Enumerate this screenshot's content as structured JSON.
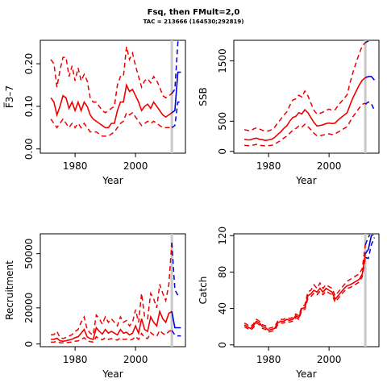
{
  "title": "Fsq, then FMult=2,0",
  "subtitle": "TAC = 213666 (164530;292819)",
  "colors": {
    "history": "#ee0000",
    "projection": "#0000dd",
    "marker": "#c8c8c8"
  },
  "chart_data": [
    {
      "type": "line",
      "xlabel": "Year",
      "ylabel": "F̅3–7",
      "xlim": [
        1968.5,
        2016.5
      ],
      "ylim": [
        -0.01,
        0.255
      ],
      "xticks": [
        1980,
        2000
      ],
      "yticks": [
        0.0,
        0.1,
        0.2
      ],
      "yticklabels": [
        "0.00",
        "0.10",
        "0.20"
      ],
      "marker_year": 2012,
      "history": {
        "x": [
          1972,
          1973,
          1974,
          1975,
          1976,
          1977,
          1978,
          1979,
          1980,
          1981,
          1982,
          1983,
          1984,
          1985,
          1986,
          1987,
          1988,
          1989,
          1990,
          1991,
          1992,
          1993,
          1994,
          1995,
          1996,
          1997,
          1998,
          1999,
          2000,
          2001,
          2002,
          2003,
          2004,
          2005,
          2006,
          2007,
          2008,
          2009,
          2010,
          2011,
          2012
        ],
        "median": [
          0.12,
          0.11,
          0.08,
          0.1,
          0.125,
          0.12,
          0.095,
          0.11,
          0.09,
          0.11,
          0.09,
          0.11,
          0.1,
          0.08,
          0.07,
          0.065,
          0.06,
          0.055,
          0.05,
          0.05,
          0.06,
          0.06,
          0.09,
          0.11,
          0.11,
          0.15,
          0.135,
          0.14,
          0.125,
          0.11,
          0.09,
          0.1,
          0.105,
          0.095,
          0.11,
          0.1,
          0.09,
          0.08,
          0.075,
          0.08,
          0.085
        ],
        "lower": [
          0.07,
          0.06,
          0.05,
          0.06,
          0.07,
          0.06,
          0.05,
          0.06,
          0.05,
          0.06,
          0.05,
          0.06,
          0.05,
          0.04,
          0.04,
          0.04,
          0.035,
          0.03,
          0.03,
          0.03,
          0.035,
          0.04,
          0.05,
          0.06,
          0.065,
          0.085,
          0.08,
          0.085,
          0.075,
          0.065,
          0.055,
          0.06,
          0.065,
          0.06,
          0.065,
          0.06,
          0.055,
          0.05,
          0.05,
          0.05,
          0.05
        ],
        "upper": [
          0.21,
          0.2,
          0.145,
          0.185,
          0.215,
          0.215,
          0.17,
          0.195,
          0.16,
          0.19,
          0.16,
          0.175,
          0.16,
          0.12,
          0.11,
          0.11,
          0.1,
          0.09,
          0.085,
          0.09,
          0.095,
          0.1,
          0.15,
          0.17,
          0.17,
          0.24,
          0.21,
          0.225,
          0.195,
          0.17,
          0.145,
          0.16,
          0.165,
          0.155,
          0.17,
          0.16,
          0.145,
          0.125,
          0.12,
          0.125,
          0.13
        ]
      },
      "projection": {
        "x": [
          2012,
          2013,
          2014,
          2015
        ],
        "median": [
          0.085,
          0.09,
          0.18,
          0.18
        ],
        "lower": [
          0.05,
          0.055,
          0.11,
          0.11
        ],
        "upper": [
          0.13,
          0.14,
          0.25,
          0.27
        ]
      }
    },
    {
      "type": "line",
      "xlabel": "Year",
      "ylabel": "SSB",
      "xlim": [
        1968.5,
        2016.5
      ],
      "ylim": [
        -30,
        1840
      ],
      "xticks": [
        1980,
        2000
      ],
      "yticks": [
        0,
        500,
        1500
      ],
      "yticklabels": [
        "0",
        "500",
        "1500"
      ],
      "marker_year": 2012,
      "history": {
        "x": [
          1972,
          1973,
          1974,
          1975,
          1976,
          1977,
          1978,
          1979,
          1980,
          1981,
          1982,
          1983,
          1984,
          1985,
          1986,
          1987,
          1988,
          1989,
          1990,
          1991,
          1992,
          1993,
          1994,
          1995,
          1996,
          1997,
          1998,
          1999,
          2000,
          2001,
          2002,
          2003,
          2004,
          2005,
          2006,
          2007,
          2008,
          2009,
          2010,
          2011,
          2012
        ],
        "median": [
          200,
          190,
          190,
          210,
          220,
          200,
          195,
          180,
          190,
          200,
          230,
          280,
          320,
          380,
          420,
          500,
          560,
          580,
          640,
          620,
          690,
          640,
          560,
          480,
          420,
          430,
          440,
          460,
          470,
          460,
          470,
          520,
          560,
          600,
          640,
          780,
          900,
          1000,
          1100,
          1180,
          1220
        ],
        "lower": [
          100,
          95,
          95,
          105,
          115,
          100,
          95,
          90,
          95,
          100,
          120,
          150,
          180,
          220,
          250,
          300,
          350,
          380,
          420,
          400,
          450,
          410,
          360,
          300,
          260,
          260,
          270,
          280,
          290,
          280,
          290,
          320,
          350,
          380,
          410,
          500,
          580,
          650,
          720,
          780,
          800
        ],
        "upper": [
          360,
          350,
          340,
          370,
          390,
          370,
          350,
          330,
          340,
          360,
          400,
          470,
          530,
          600,
          650,
          760,
          850,
          870,
          930,
          900,
          1000,
          920,
          800,
          680,
          620,
          630,
          650,
          680,
          700,
          680,
          690,
          760,
          820,
          880,
          940,
          1150,
          1320,
          1480,
          1620,
          1750,
          1800
        ]
      },
      "projection": {
        "x": [
          2012,
          2013,
          2014,
          2015
        ],
        "median": [
          1220,
          1240,
          1240,
          1180
        ],
        "lower": [
          780,
          820,
          790,
          680
        ],
        "upper": [
          1800,
          1830,
          1850,
          1850
        ]
      }
    },
    {
      "type": "line",
      "xlabel": "Year",
      "ylabel": "Recruitment",
      "xlim": [
        1968.5,
        2016.5
      ],
      "ylim": [
        -1500,
        61000
      ],
      "xticks": [
        1980,
        2000
      ],
      "yticks": [
        0,
        20000,
        50000
      ],
      "yticklabels": [
        "0",
        "20000",
        "50000"
      ],
      "marker_year": 2012,
      "history": {
        "x": [
          1972,
          1973,
          1974,
          1975,
          1976,
          1977,
          1978,
          1979,
          1980,
          1981,
          1982,
          1983,
          1984,
          1985,
          1986,
          1987,
          1988,
          1989,
          1990,
          1991,
          1992,
          1993,
          1994,
          1995,
          1996,
          1997,
          1998,
          1999,
          2000,
          2001,
          2002,
          2003,
          2004,
          2005,
          2006,
          2007,
          2008,
          2009,
          2010,
          2011,
          2012
        ],
        "median": [
          2500,
          2600,
          3200,
          1800,
          1500,
          1800,
          2200,
          2600,
          3500,
          4000,
          6000,
          8000,
          4000,
          3000,
          2500,
          9000,
          7000,
          5500,
          8000,
          6000,
          7000,
          6000,
          5000,
          8000,
          6000,
          6500,
          5000,
          6000,
          10000,
          6000,
          14000,
          8000,
          7000,
          15000,
          12000,
          10000,
          18000,
          14000,
          12000,
          17000,
          18000
        ],
        "lower": [
          1000,
          1100,
          1400,
          700,
          600,
          700,
          900,
          1100,
          1500,
          1700,
          2500,
          3500,
          1700,
          1300,
          1100,
          4000,
          3000,
          2300,
          3400,
          2500,
          3000,
          2500,
          2100,
          3400,
          2500,
          2700,
          2100,
          2500,
          4200,
          2500,
          5800,
          3400,
          3000,
          6300,
          5000,
          4200,
          7500,
          5800,
          5000,
          7000,
          7500
        ],
        "upper": [
          5000,
          5200,
          7000,
          3500,
          3000,
          3600,
          4400,
          5200,
          7000,
          8000,
          12000,
          15000,
          8000,
          6000,
          5000,
          16000,
          14000,
          11000,
          15000,
          12000,
          14000,
          12000,
          10000,
          15000,
          12000,
          13000,
          10000,
          12000,
          19000,
          12000,
          28000,
          15000,
          14000,
          28000,
          25000,
          20000,
          33000,
          28000,
          24000,
          33000,
          56000
        ]
      },
      "projection": {
        "x": [
          2012,
          2013,
          2014,
          2015
        ],
        "median": [
          18000,
          9000,
          9000,
          9000
        ],
        "lower": [
          7500,
          5000,
          4500,
          4500
        ],
        "upper": [
          56000,
          30000,
          27000,
          27000
        ]
      }
    },
    {
      "type": "line",
      "xlabel": "Year",
      "ylabel": "Catch",
      "xlim": [
        1968.5,
        2016.5
      ],
      "ylim": [
        -2,
        122
      ],
      "xticks": [
        1980,
        2000
      ],
      "yticks": [
        0,
        40,
        80,
        120
      ],
      "yticklabels": [
        "0",
        "40",
        "80",
        "120"
      ],
      "marker_year": 2012,
      "history": {
        "x": [
          1972,
          1973,
          1974,
          1975,
          1976,
          1977,
          1978,
          1979,
          1980,
          1981,
          1982,
          1983,
          1984,
          1985,
          1986,
          1987,
          1988,
          1989,
          1990,
          1991,
          1992,
          1993,
          1994,
          1995,
          1996,
          1997,
          1998,
          1999,
          2000,
          2001,
          2002,
          2003,
          2004,
          2005,
          2006,
          2007,
          2008,
          2009,
          2010,
          2011,
          2012
        ],
        "median": [
          22,
          20,
          18,
          21,
          26,
          24,
          20,
          19,
          16,
          17,
          18,
          24,
          26,
          26,
          28,
          27,
          28,
          32,
          30,
          40,
          41,
          54,
          56,
          60,
          58,
          62,
          58,
          62,
          60,
          58,
          50,
          54,
          58,
          62,
          65,
          66,
          68,
          70,
          72,
          78,
          100
        ],
        "lower": [
          20,
          18,
          16,
          19,
          24,
          22,
          18,
          17,
          14,
          15,
          16,
          22,
          24,
          24,
          26,
          25,
          26,
          30,
          28,
          38,
          39,
          51,
          53,
          57,
          55,
          59,
          55,
          59,
          57,
          55,
          47,
          51,
          55,
          59,
          62,
          63,
          65,
          67,
          69,
          75,
          96
        ],
        "upper": [
          24,
          22,
          20,
          23,
          28,
          26,
          22,
          21,
          18,
          19,
          20,
          26,
          28,
          28,
          30,
          29,
          30,
          34,
          32,
          42,
          44,
          58,
          60,
          66,
          62,
          68,
          62,
          66,
          64,
          62,
          54,
          58,
          62,
          66,
          70,
          72,
          74,
          76,
          78,
          84,
          110
        ]
      },
      "projection": {
        "x": [
          2012,
          2013,
          2014,
          2015
        ],
        "median": [
          100,
          105,
          120,
          122
        ],
        "lower": [
          96,
          95,
          110,
          118
        ],
        "upper": [
          110,
          118,
          125,
          126
        ]
      }
    }
  ]
}
